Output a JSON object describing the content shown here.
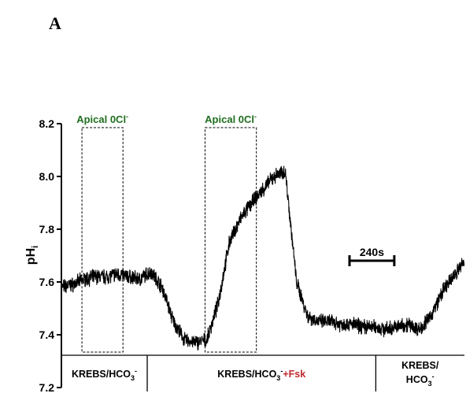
{
  "panel_letter": "A",
  "chart_data": {
    "type": "line",
    "title": "",
    "xlabel": "",
    "ylabel": "pH",
    "ylabel_subscript": "i",
    "ylim": [
      7.2,
      8.2
    ],
    "yticks": [
      7.2,
      7.4,
      7.6,
      7.8,
      8.0,
      8.2
    ],
    "ytick_labels": [
      "7.2",
      "7.4",
      "7.6",
      "7.8",
      "8.0",
      "8.2"
    ],
    "x_units": "s",
    "x_range_s": [
      0,
      2160
    ],
    "grid": false,
    "series": [
      {
        "x": [
          0,
          60,
          120,
          180,
          240,
          300,
          360,
          420,
          480,
          540,
          600,
          660,
          720,
          780,
          840,
          900,
          960,
          1020,
          1080,
          1140,
          1200,
          1260,
          1320,
          1380,
          1440,
          1500,
          1560,
          1620,
          1680,
          1740,
          1800,
          1860,
          1920,
          1980,
          2040,
          2100,
          2160
        ],
        "y": [
          7.58,
          7.59,
          7.61,
          7.62,
          7.62,
          7.63,
          7.62,
          7.61,
          7.64,
          7.58,
          7.45,
          7.38,
          7.37,
          7.38,
          7.52,
          7.75,
          7.84,
          7.9,
          7.95,
          8.0,
          8.02,
          7.6,
          7.47,
          7.45,
          7.45,
          7.44,
          7.44,
          7.43,
          7.43,
          7.42,
          7.43,
          7.44,
          7.42,
          7.47,
          7.56,
          7.62,
          7.68
        ]
      }
    ],
    "annotations": [
      {
        "label": "Apical 0Cl",
        "superscript": "-",
        "x_start": 110,
        "x_end": 330
      },
      {
        "label": "Apical 0Cl",
        "superscript": "-",
        "x_start": 770,
        "x_end": 1045
      }
    ],
    "scale_bar": {
      "label": "240s",
      "duration_s": 240
    },
    "conditions": [
      {
        "text": "KREBS/HCO",
        "sub": "3",
        "sup": "-",
        "suffix": "",
        "x_start": 0,
        "x_end": 460
      },
      {
        "text": "KREBS/HCO",
        "sub": "3",
        "sup": "-",
        "suffix": "+Fsk",
        "x_start": 460,
        "x_end": 1685
      },
      {
        "line1": "KREBS/",
        "text": "HCO",
        "sub": "3",
        "sup": "-",
        "suffix": "",
        "x_start": 1685,
        "x_end": 2160
      }
    ]
  },
  "colors": {
    "trace": "#000000",
    "box_label": "#1f6e1f",
    "fsk": "#c0282d"
  }
}
